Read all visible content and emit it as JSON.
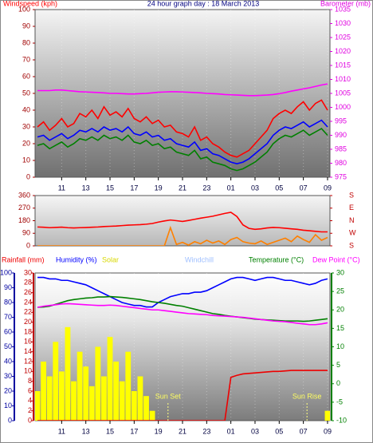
{
  "chart_data": [
    {
      "type": "line",
      "title": "24 hour graph day : 18 March 2013",
      "ylabel": "Windspeed (kph)",
      "y2label": "Barometer (mb)",
      "xlim": [
        8.8,
        33.2
      ],
      "xticks": [
        11,
        13,
        15,
        17,
        19,
        21,
        23,
        {
          "value": 25,
          "label": "01"
        },
        {
          "value": 27,
          "label": "03"
        },
        {
          "value": 29,
          "label": "05"
        },
        {
          "value": 31,
          "label": "07"
        },
        {
          "value": 33,
          "label": "09"
        }
      ],
      "ylim": [
        0,
        100
      ],
      "yticks": [
        0,
        10,
        20,
        30,
        40,
        50,
        60,
        70,
        80,
        90,
        100
      ],
      "y2lim": [
        975,
        1035
      ],
      "y2ticks": [
        975,
        980,
        985,
        990,
        995,
        1000,
        1005,
        1010,
        1015,
        1020,
        1025,
        1030,
        1035
      ],
      "axis_colors": {
        "y": "#a00000",
        "y2": "#e000e0"
      },
      "grid": true,
      "x": [
        9,
        9.5,
        10,
        10.5,
        11,
        11.5,
        12,
        12.5,
        13,
        13.5,
        14,
        14.5,
        15,
        15.5,
        16,
        16.5,
        17,
        17.5,
        18,
        18.5,
        19,
        19.5,
        20,
        20.5,
        21,
        21.5,
        22,
        22.5,
        23,
        23.5,
        24,
        24.5,
        25,
        25.5,
        26,
        26.5,
        27,
        27.5,
        28,
        28.5,
        29,
        29.5,
        30,
        30.5,
        31,
        31.5,
        32,
        32.5,
        33
      ],
      "series": [
        {
          "color": "#ff0000",
          "values": [
            30,
            33,
            28,
            31,
            35,
            30,
            32,
            38,
            36,
            40,
            35,
            42,
            37,
            39,
            36,
            41,
            35,
            33,
            36,
            32,
            34,
            30,
            31,
            27,
            26,
            24,
            30,
            22,
            24,
            20,
            18,
            15,
            13,
            12,
            14,
            16,
            20,
            24,
            28,
            35,
            38,
            40,
            38,
            42,
            45,
            40,
            44,
            46,
            40
          ]
        },
        {
          "color": "#0000ff",
          "values": [
            24,
            25,
            22,
            24,
            26,
            23,
            25,
            28,
            27,
            29,
            27,
            30,
            28,
            29,
            27,
            30,
            26,
            25,
            27,
            24,
            25,
            22,
            23,
            20,
            19,
            18,
            21,
            16,
            17,
            14,
            13,
            11,
            9,
            8,
            9,
            11,
            14,
            17,
            20,
            25,
            28,
            30,
            29,
            31,
            33,
            30,
            32,
            34,
            30
          ]
        },
        {
          "color": "#008000",
          "values": [
            19,
            20,
            17,
            19,
            21,
            18,
            20,
            23,
            22,
            24,
            22,
            25,
            23,
            24,
            22,
            25,
            21,
            20,
            22,
            19,
            20,
            17,
            18,
            15,
            14,
            13,
            16,
            11,
            12,
            9,
            8,
            7,
            5,
            4,
            5,
            7,
            9,
            12,
            15,
            20,
            23,
            25,
            24,
            26,
            28,
            25,
            27,
            29,
            25
          ]
        },
        {
          "color": "#ff00ff",
          "axis": "y2",
          "values": [
            1006,
            1006,
            1006,
            1006.2,
            1006.2,
            1006,
            1005.8,
            1005.6,
            1005.5,
            1005.4,
            1005.3,
            1005.2,
            1005,
            1005,
            1004.9,
            1004.8,
            1004.8,
            1004.9,
            1005,
            1005.2,
            1005.4,
            1005.5,
            1005.6,
            1005.6,
            1005.5,
            1005.4,
            1005.3,
            1005.2,
            1005,
            1004.9,
            1004.8,
            1004.6,
            1004.5,
            1004.4,
            1004.3,
            1004.2,
            1004.2,
            1004.3,
            1004.4,
            1004.6,
            1004.9,
            1005.3,
            1005.8,
            1006.2,
            1006.6,
            1007,
            1007.5,
            1008,
            1008.4
          ]
        }
      ]
    },
    {
      "type": "line",
      "xlim": [
        8.8,
        33.2
      ],
      "ylim": [
        0,
        360
      ],
      "yticks": [
        0,
        90,
        180,
        270,
        360
      ],
      "y2lim": [
        0,
        360
      ],
      "y2ticks": [
        {
          "value": 360,
          "label": "S"
        },
        {
          "value": 270,
          "label": "E"
        },
        {
          "value": 180,
          "label": "N"
        },
        {
          "value": 90,
          "label": "W"
        },
        {
          "value": 0,
          "label": "S"
        }
      ],
      "axis_colors": {
        "y": "#a00000",
        "y2": "#c00000"
      },
      "grid": false,
      "x": [
        9,
        9.5,
        10,
        10.5,
        11,
        11.5,
        12,
        12.5,
        13,
        13.5,
        14,
        14.5,
        15,
        15.5,
        16,
        16.5,
        17,
        17.5,
        18,
        18.5,
        19,
        19.5,
        20,
        20.5,
        21,
        21.5,
        22,
        22.5,
        23,
        23.5,
        24,
        24.5,
        25,
        25.5,
        26,
        26.5,
        27,
        27.5,
        28,
        28.5,
        29,
        29.5,
        30,
        30.5,
        31,
        31.5,
        32,
        32.5,
        33
      ],
      "series": [
        {
          "color": "#ff8000",
          "values": [
            0,
            0,
            0,
            0,
            0,
            0,
            0,
            0,
            0,
            0,
            0,
            0,
            0,
            0,
            0,
            0,
            0,
            0,
            0,
            0,
            0,
            0,
            130,
            10,
            25,
            5,
            30,
            15,
            40,
            20,
            35,
            10,
            45,
            60,
            30,
            20,
            15,
            35,
            10,
            25,
            40,
            55,
            30,
            70,
            45,
            25,
            80,
            40,
            60
          ]
        },
        {
          "color": "#ff0000",
          "values": [
            135,
            133,
            130,
            132,
            134,
            130,
            128,
            130,
            131,
            133,
            135,
            138,
            140,
            142,
            145,
            148,
            150,
            152,
            155,
            160,
            170,
            178,
            185,
            180,
            175,
            182,
            190,
            198,
            205,
            212,
            222,
            232,
            240,
            210,
            150,
            125,
            118,
            122,
            128,
            132,
            130,
            126,
            122,
            118,
            112,
            108,
            104,
            100,
            100
          ]
        }
      ]
    },
    {
      "type": "line",
      "windchill_label": "Windchill",
      "xlim": [
        8.8,
        33.2
      ],
      "xticks": [
        11,
        13,
        15,
        17,
        19,
        21,
        23,
        {
          "value": 25,
          "label": "01"
        },
        {
          "value": 27,
          "label": "03"
        },
        {
          "value": 29,
          "label": "05"
        },
        {
          "value": 31,
          "label": "07"
        },
        {
          "value": 33,
          "label": "09"
        }
      ],
      "ylim": [
        0,
        30
      ],
      "yticks": [
        0,
        2,
        4,
        6,
        8,
        10,
        12,
        14,
        16,
        18,
        20,
        22,
        24,
        26,
        28,
        30
      ],
      "y3lim": [
        0,
        100
      ],
      "y3ticks": [
        0,
        10,
        20,
        30,
        40,
        50,
        60,
        70,
        80,
        90,
        100
      ],
      "y2lim": [
        -10,
        30
      ],
      "y2ticks": [
        -10,
        -5,
        0,
        5,
        10,
        15,
        20,
        25,
        30
      ],
      "axis_colors": {
        "y": "#c00000",
        "y3": "#0000a0",
        "y2": "#008000"
      },
      "grid": true,
      "annotations": [
        {
          "text": "Sun Set",
          "x": 19.8
        },
        {
          "text": "Sun Rise",
          "x": 31.3
        }
      ],
      "x": [
        9,
        9.5,
        10,
        10.5,
        11,
        11.5,
        12,
        12.5,
        13,
        13.5,
        14,
        14.5,
        15,
        15.5,
        16,
        16.5,
        17,
        17.5,
        18,
        18.5,
        19,
        19.5,
        20,
        20.5,
        21,
        21.5,
        22,
        22.5,
        23,
        23.5,
        24,
        24.5,
        25,
        25.5,
        26,
        26.5,
        27,
        27.5,
        28,
        28.5,
        29,
        29.5,
        30,
        30.5,
        31,
        31.5,
        32,
        32.5,
        33
      ],
      "series": [
        {
          "name": "Solar",
          "kind": "bar",
          "color": "#ffff00",
          "values": [
            6,
            12,
            9,
            16,
            10,
            19,
            8,
            14,
            11,
            7,
            15,
            9,
            17,
            12,
            8,
            14,
            6,
            9,
            5,
            2,
            0,
            0,
            0,
            0,
            0,
            0,
            0,
            0,
            0,
            0,
            0,
            0,
            0,
            0,
            0,
            0,
            0,
            0,
            0,
            0,
            0,
            0,
            0,
            0,
            0,
            0,
            0,
            0,
            2
          ]
        },
        {
          "name": "Rainfall (mm)",
          "color": "#ee0000",
          "values": [
            0,
            0,
            0,
            0,
            0,
            0,
            0,
            0,
            0,
            0,
            0,
            0,
            0,
            0,
            0,
            0,
            0,
            0,
            0,
            0,
            0,
            0,
            0,
            0,
            0,
            0,
            0,
            0,
            0,
            0,
            0,
            0,
            8.8,
            9.2,
            9.5,
            9.6,
            9.7,
            9.8,
            9.9,
            10,
            10,
            10.1,
            10.2,
            10.2,
            10.2,
            10.2,
            10.2,
            10.2,
            10.2
          ]
        },
        {
          "name": "Humidity (%)",
          "axis": "y3",
          "color": "#0000ff",
          "values": [
            97,
            97,
            96,
            96,
            95,
            95,
            94,
            93,
            92,
            90,
            88,
            86,
            84,
            82,
            80,
            79,
            78,
            78,
            77,
            77,
            80,
            82,
            84,
            85,
            86,
            86,
            87,
            87,
            88,
            90,
            92,
            94,
            96,
            97,
            97,
            96,
            95,
            96,
            97,
            97,
            96,
            95,
            95,
            94,
            93,
            92,
            93,
            95,
            96
          ]
        },
        {
          "name": "Temperature (°C)",
          "axis": "y2",
          "color": "#008000",
          "values": [
            20.7,
            20.8,
            21,
            21.5,
            22,
            22.5,
            22.8,
            23,
            23.2,
            23.3,
            23.5,
            23.5,
            23.6,
            23.5,
            23.4,
            23.2,
            23,
            22.8,
            22.5,
            22.2,
            22,
            21.8,
            21.5,
            21.2,
            21,
            20.6,
            20.2,
            19.8,
            19.4,
            19,
            18.8,
            18.5,
            18.3,
            18.1,
            17.9,
            17.7,
            17.5,
            17.4,
            17.3,
            17.2,
            17.1,
            17,
            17,
            17,
            16.9,
            17,
            17.2,
            17.4,
            17.6
          ]
        },
        {
          "name": "Dew Point (°C)",
          "axis": "y2",
          "color": "#ff00ff",
          "values": [
            20.7,
            21,
            21.2,
            21.4,
            21.6,
            21.7,
            21.6,
            21.5,
            21.4,
            21.3,
            21.2,
            21.2,
            21.3,
            21.2,
            21,
            20.8,
            20.6,
            20.4,
            20.2,
            20,
            20,
            19.8,
            19.6,
            19.4,
            19.2,
            19,
            18.9,
            18.8,
            18.7,
            18.5,
            18.4,
            18.3,
            18.2,
            18.1,
            18,
            17.8,
            17.6,
            17.4,
            17.2,
            17,
            16.9,
            16.8,
            16.6,
            16.4,
            16.2,
            16,
            16,
            16.2,
            16.5
          ]
        }
      ]
    }
  ]
}
